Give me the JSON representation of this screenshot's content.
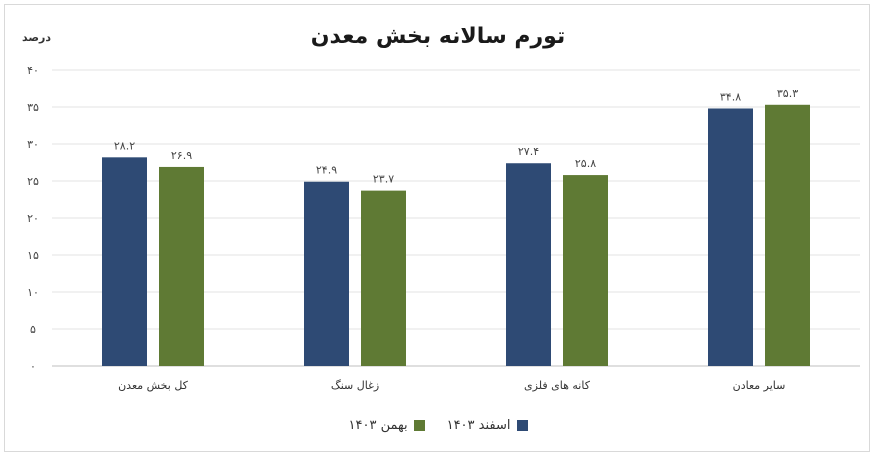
{
  "chart_data": {
    "type": "bar",
    "title": "تورم سالانه بخش معدن",
    "ylabel": "درصد",
    "xlabel": "",
    "ylim": [
      0,
      40
    ],
    "yticks": [
      0,
      5,
      10,
      15,
      20,
      25,
      30,
      35,
      40
    ],
    "ytick_labels": [
      "۰",
      "۵",
      "۱۰",
      "۱۵",
      "۲۰",
      "۲۵",
      "۳۰",
      "۳۵",
      "۴۰"
    ],
    "grid": true,
    "legend": "bottom",
    "categories": [
      "کل بخش معدن",
      "زغال سنگ",
      "کانه های فلزی",
      "سایر معادن"
    ],
    "series": [
      {
        "name": "اسفند ۱۴۰۳",
        "color": "#2e4a74",
        "values": [
          28.2,
          24.9,
          27.4,
          34.8
        ],
        "labels": [
          "۲۸.۲",
          "۲۴.۹",
          "۲۷.۴",
          "۳۴.۸"
        ]
      },
      {
        "name": "بهمن ۱۴۰۳",
        "color": "#5f7a34",
        "values": [
          26.9,
          23.7,
          25.8,
          35.3
        ],
        "labels": [
          "۲۶.۹",
          "۲۳.۷",
          "۲۵.۸",
          "۳۵.۳"
        ]
      }
    ]
  }
}
